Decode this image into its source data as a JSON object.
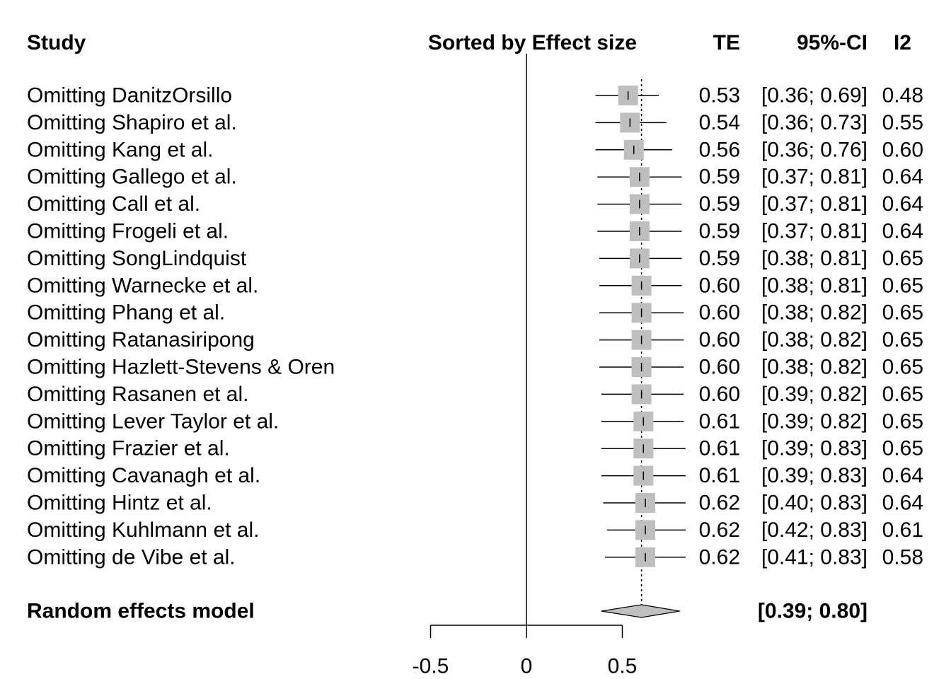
{
  "chart_data": {
    "type": "forest",
    "headers": {
      "study": "Study",
      "sort": "Sorted by Effect size",
      "te": "TE",
      "ci": "95%-CI",
      "i2": "I2"
    },
    "rows": [
      {
        "study": "Omitting DanitzOrsillo",
        "te": 0.53,
        "lower": 0.36,
        "upper": 0.69,
        "te_text": "0.53",
        "ci_text": "[0.36; 0.69]",
        "i2_text": "0.48"
      },
      {
        "study": "Omitting Shapiro et al.",
        "te": 0.54,
        "lower": 0.36,
        "upper": 0.73,
        "te_text": "0.54",
        "ci_text": "[0.36; 0.73]",
        "i2_text": "0.55"
      },
      {
        "study": "Omitting Kang et al.",
        "te": 0.56,
        "lower": 0.36,
        "upper": 0.76,
        "te_text": "0.56",
        "ci_text": "[0.36; 0.76]",
        "i2_text": "0.60"
      },
      {
        "study": "Omitting Gallego et al.",
        "te": 0.59,
        "lower": 0.37,
        "upper": 0.81,
        "te_text": "0.59",
        "ci_text": "[0.37; 0.81]",
        "i2_text": "0.64"
      },
      {
        "study": "Omitting Call et al.",
        "te": 0.59,
        "lower": 0.37,
        "upper": 0.81,
        "te_text": "0.59",
        "ci_text": "[0.37; 0.81]",
        "i2_text": "0.64"
      },
      {
        "study": "Omitting Frogeli et al.",
        "te": 0.59,
        "lower": 0.37,
        "upper": 0.81,
        "te_text": "0.59",
        "ci_text": "[0.37; 0.81]",
        "i2_text": "0.64"
      },
      {
        "study": "Omitting SongLindquist",
        "te": 0.59,
        "lower": 0.38,
        "upper": 0.81,
        "te_text": "0.59",
        "ci_text": "[0.38; 0.81]",
        "i2_text": "0.65"
      },
      {
        "study": "Omitting Warnecke et al.",
        "te": 0.6,
        "lower": 0.38,
        "upper": 0.81,
        "te_text": "0.60",
        "ci_text": "[0.38; 0.81]",
        "i2_text": "0.65"
      },
      {
        "study": "Omitting Phang et al.",
        "te": 0.6,
        "lower": 0.38,
        "upper": 0.82,
        "te_text": "0.60",
        "ci_text": "[0.38; 0.82]",
        "i2_text": "0.65"
      },
      {
        "study": "Omitting Ratanasiripong",
        "te": 0.6,
        "lower": 0.38,
        "upper": 0.82,
        "te_text": "0.60",
        "ci_text": "[0.38; 0.82]",
        "i2_text": "0.65"
      },
      {
        "study": "Omitting Hazlett-Stevens & Oren",
        "te": 0.6,
        "lower": 0.38,
        "upper": 0.82,
        "te_text": "0.60",
        "ci_text": "[0.38; 0.82]",
        "i2_text": "0.65"
      },
      {
        "study": "Omitting Rasanen et al.",
        "te": 0.6,
        "lower": 0.39,
        "upper": 0.82,
        "te_text": "0.60",
        "ci_text": "[0.39; 0.82]",
        "i2_text": "0.65"
      },
      {
        "study": "Omitting Lever Taylor et al.",
        "te": 0.61,
        "lower": 0.39,
        "upper": 0.82,
        "te_text": "0.61",
        "ci_text": "[0.39; 0.82]",
        "i2_text": "0.65"
      },
      {
        "study": "Omitting Frazier et al.",
        "te": 0.61,
        "lower": 0.39,
        "upper": 0.83,
        "te_text": "0.61",
        "ci_text": "[0.39; 0.83]",
        "i2_text": "0.65"
      },
      {
        "study": "Omitting Cavanagh et al.",
        "te": 0.61,
        "lower": 0.39,
        "upper": 0.83,
        "te_text": "0.61",
        "ci_text": "[0.39; 0.83]",
        "i2_text": "0.64"
      },
      {
        "study": "Omitting Hintz et al.",
        "te": 0.62,
        "lower": 0.4,
        "upper": 0.83,
        "te_text": "0.62",
        "ci_text": "[0.40; 0.83]",
        "i2_text": "0.64"
      },
      {
        "study": "Omitting Kuhlmann et al.",
        "te": 0.62,
        "lower": 0.42,
        "upper": 0.83,
        "te_text": "0.62",
        "ci_text": "[0.42; 0.83]",
        "i2_text": "0.61"
      },
      {
        "study": "Omitting de Vibe et al.",
        "te": 0.62,
        "lower": 0.41,
        "upper": 0.83,
        "te_text": "0.62",
        "ci_text": "[0.41; 0.83]",
        "i2_text": "0.58"
      }
    ],
    "summary": {
      "label": "Random effects model",
      "te": 0.6,
      "lower": 0.39,
      "upper": 0.8,
      "ci_text": "[0.39; 0.80]"
    },
    "axis": {
      "xlim": [
        -0.5,
        0.5
      ],
      "ticks": [
        -0.5,
        0,
        0.5
      ],
      "tick_labels": [
        "-0.5",
        "0",
        "0.5"
      ],
      "null_value": 0
    },
    "colors": {
      "square": "#bfbfbf",
      "diamond": "#bfbfbf",
      "line": "#000000"
    }
  }
}
